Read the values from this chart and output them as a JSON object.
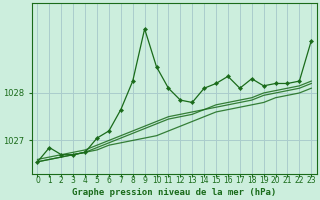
{
  "title": "Graphe pression niveau de la mer (hPa)",
  "background_color": "#cceedd",
  "grid_color": "#aacccc",
  "line_color": "#1a6b1a",
  "marker_color": "#1a6b1a",
  "x_values": [
    0,
    1,
    2,
    3,
    4,
    5,
    6,
    7,
    8,
    9,
    10,
    11,
    12,
    13,
    14,
    15,
    16,
    17,
    18,
    19,
    20,
    21,
    22,
    23
  ],
  "trend_lines": [
    [
      1026.55,
      1026.6,
      1026.65,
      1026.7,
      1026.75,
      1026.8,
      1026.9,
      1026.95,
      1027.0,
      1027.05,
      1027.1,
      1027.2,
      1027.3,
      1027.4,
      1027.5,
      1027.6,
      1027.65,
      1027.7,
      1027.75,
      1027.8,
      1027.9,
      1027.95,
      1028.0,
      1028.1
    ],
    [
      1026.6,
      1026.65,
      1026.7,
      1026.75,
      1026.8,
      1026.9,
      1027.0,
      1027.1,
      1027.2,
      1027.3,
      1027.4,
      1027.5,
      1027.55,
      1027.6,
      1027.65,
      1027.75,
      1027.8,
      1027.85,
      1027.9,
      1028.0,
      1028.05,
      1028.1,
      1028.15,
      1028.25
    ],
    [
      1026.55,
      1026.6,
      1026.65,
      1026.7,
      1026.75,
      1026.85,
      1026.95,
      1027.05,
      1027.15,
      1027.25,
      1027.35,
      1027.45,
      1027.5,
      1027.55,
      1027.65,
      1027.7,
      1027.75,
      1027.8,
      1027.85,
      1027.95,
      1028.0,
      1028.05,
      1028.1,
      1028.2
    ]
  ],
  "main_series": [
    1026.55,
    1026.85,
    1026.7,
    1026.7,
    1026.75,
    1027.05,
    1027.2,
    1027.65,
    1028.25,
    1029.35,
    1028.55,
    1028.1,
    1027.85,
    1027.8,
    1028.1,
    1028.2,
    1028.35,
    1028.1,
    1028.3,
    1028.15,
    1028.2,
    1028.2,
    1028.25,
    1029.1
  ],
  "ylim": [
    1026.3,
    1029.9
  ],
  "yticks": [
    1027,
    1028
  ],
  "xlim": [
    -0.5,
    23.5
  ],
  "xlabel_fontsize": 5.5,
  "ylabel_fontsize": 6,
  "title_fontsize": 6.5
}
